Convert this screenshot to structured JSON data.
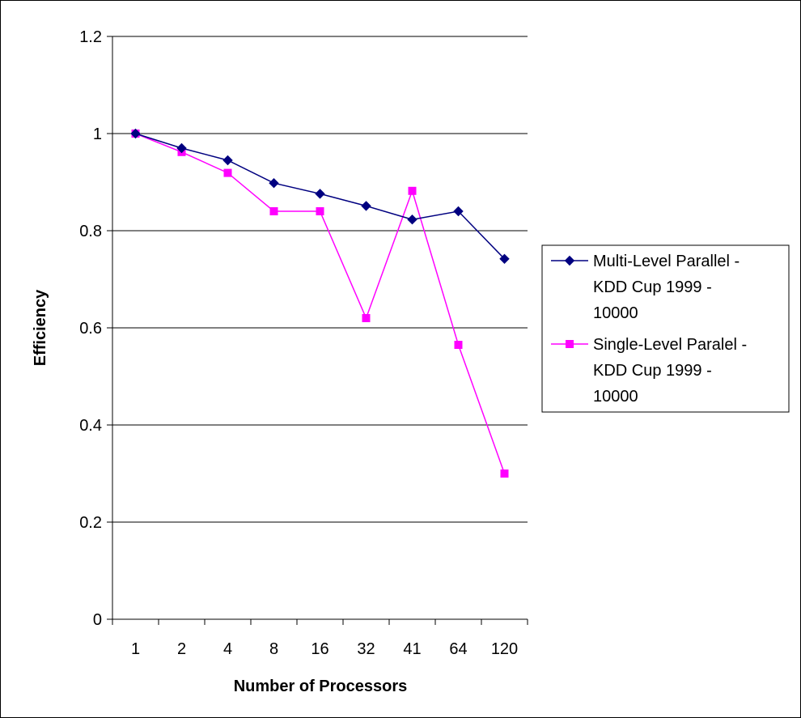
{
  "chart_data": {
    "type": "line",
    "title": "",
    "xlabel": "Number of Processors",
    "ylabel": "Efficiency",
    "categories": [
      "1",
      "2",
      "4",
      "8",
      "16",
      "32",
      "41",
      "64",
      "120"
    ],
    "ylim": [
      0,
      1.2
    ],
    "yticks": [
      "0",
      "0.2",
      "0.4",
      "0.6",
      "0.8",
      "1",
      "1.2"
    ],
    "grid": "horizontal",
    "legend_position": "right",
    "series": [
      {
        "name": "Multi-Level Parallel - KDD Cup 1999 - 10000",
        "legend_lines": [
          "Multi-Level Parallel -",
          "KDD Cup 1999 -",
          "10000"
        ],
        "values": [
          1.0,
          0.97,
          0.945,
          0.898,
          0.876,
          0.851,
          0.823,
          0.84,
          0.742
        ],
        "color": "#000080",
        "marker": "diamond"
      },
      {
        "name": "Single-Level Paralel - KDD Cup 1999 - 10000",
        "legend_lines": [
          "Single-Level Paralel -",
          "KDD Cup 1999 -",
          "10000"
        ],
        "values": [
          1.0,
          0.962,
          0.919,
          0.84,
          0.84,
          0.62,
          0.882,
          0.565,
          0.3
        ],
        "color": "#FF00FF",
        "marker": "square"
      }
    ]
  }
}
